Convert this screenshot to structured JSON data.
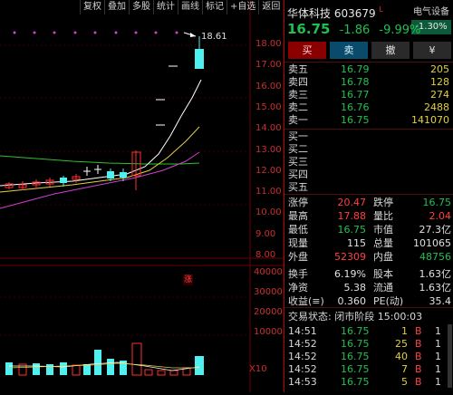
{
  "toolbar": [
    "复权",
    "叠加",
    "多股",
    "统计",
    "画线",
    "标记",
    "+自选",
    "返回"
  ],
  "chart": {
    "price_labels": [
      "18.00",
      "17.00",
      "16.00",
      "15.00",
      "14.00",
      "13.00",
      "12.00",
      "11.00",
      "10.00",
      "9.00",
      "8.00"
    ],
    "volume_labels": [
      "40000",
      "30000",
      "20000",
      "10000"
    ],
    "volume_unit": "X10",
    "high_marker": "18.61",
    "limit_marker": "涨",
    "colors": {
      "up": "#ff3030",
      "down": "#50f0f0",
      "ma5": "#ffffff",
      "ma10": "#e0d040",
      "ma20": "#d040d0",
      "ma30": "#30c030"
    }
  },
  "stock": {
    "name": "华体科技",
    "code": "603679",
    "flag": "L",
    "price": "16.75",
    "change": "-1.86",
    "change_pct": "-9.99%",
    "sector": "电气设备",
    "sector_pct": "-1.30%"
  },
  "buttons": {
    "buy": "买",
    "sell": "卖",
    "cancel": "撤",
    "cash": "¥"
  },
  "asks": [
    {
      "label": "卖五",
      "price": "16.79",
      "vol": "205"
    },
    {
      "label": "卖四",
      "price": "16.78",
      "vol": "128"
    },
    {
      "label": "卖三",
      "price": "16.77",
      "vol": "274"
    },
    {
      "label": "卖二",
      "price": "16.76",
      "vol": "2488"
    },
    {
      "label": "卖一",
      "price": "16.75",
      "vol": "141070"
    }
  ],
  "bids": [
    {
      "label": "买一"
    },
    {
      "label": "买二"
    },
    {
      "label": "买三"
    },
    {
      "label": "买四"
    },
    {
      "label": "买五"
    }
  ],
  "stats": [
    {
      "l1": "涨停",
      "v1": "20.47",
      "c1": "#ff4040",
      "l2": "跌停",
      "v2": "16.75",
      "c2": "#20c050"
    },
    {
      "l1": "最高",
      "v1": "17.88",
      "c1": "#ff4040",
      "l2": "量比",
      "v2": "2.04",
      "c2": "#ff4040"
    },
    {
      "l1": "最低",
      "v1": "16.75",
      "c1": "#20c050",
      "l2": "市值",
      "v2": "27.3亿",
      "c2": "#e0e0e0"
    },
    {
      "l1": "现量",
      "v1": "115",
      "c1": "#e0e0e0",
      "l2": "总量",
      "v2": "101065",
      "c2": "#e0e0e0"
    },
    {
      "l1": "外盘",
      "v1": "52309",
      "c1": "#ff4040",
      "l2": "内盘",
      "v2": "48756",
      "c2": "#20c050"
    },
    {
      "l1": "换手",
      "v1": "6.19%",
      "c1": "#e0e0e0",
      "l2": "股本",
      "v2": "1.63亿",
      "c2": "#e0e0e0"
    },
    {
      "l1": "净资",
      "v1": "5.38",
      "c1": "#e0e0e0",
      "l2": "流通",
      "v2": "1.63亿",
      "c2": "#e0e0e0"
    },
    {
      "l1": "收益(≡)",
      "v1": "0.360",
      "c1": "#e0e0e0",
      "l2": "PE(动)",
      "v2": "35.4",
      "c2": "#e0e0e0"
    }
  ],
  "trade_status": "交易状态: 闭市阶段 15:00:03",
  "ticks": [
    {
      "time": "14:51",
      "price": "16.75",
      "vol": "1",
      "side": "B",
      "n": "1"
    },
    {
      "time": "14:52",
      "price": "16.75",
      "vol": "25",
      "side": "B",
      "n": "1"
    },
    {
      "time": "14:52",
      "price": "16.75",
      "vol": "40",
      "side": "B",
      "n": "1"
    },
    {
      "time": "14:52",
      "price": "16.75",
      "vol": "7",
      "side": "B",
      "n": "1"
    },
    {
      "time": "14:53",
      "price": "16.75",
      "vol": "5",
      "side": "B",
      "n": "1"
    }
  ]
}
